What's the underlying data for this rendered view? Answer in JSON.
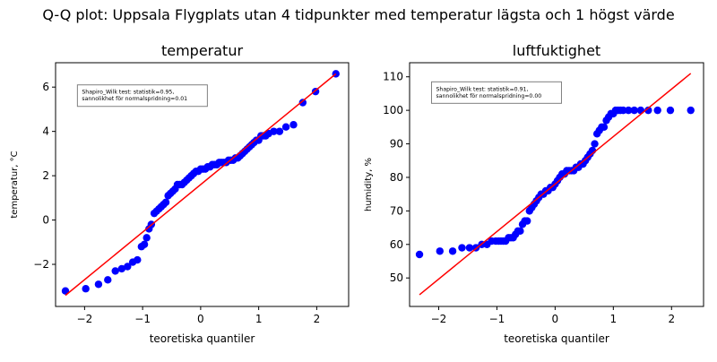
{
  "suptitle": "Q-Q plot: Uppsala Flygplats utan 4 tidpunkter med temperatur lägsta och  1 högst värde",
  "colors": {
    "points": "#0000ff",
    "fit_line": "#ff0000",
    "stats_text": "#ff0000",
    "stats_box_border": "#808080"
  },
  "chart_data": [
    {
      "type": "scatter",
      "title": "temperatur",
      "xlabel": "teoretiska quantiler",
      "ylabel": "temperatur, °C",
      "xlim": [
        -2.5,
        2.55
      ],
      "ylim": [
        -3.9,
        7.1
      ],
      "xticks": [
        -2,
        -1,
        0,
        1,
        2
      ],
      "yticks": [
        -2,
        0,
        2,
        4,
        6
      ],
      "stats_text": [
        "Shapiro_Wilk test: statistik=0.95,",
        "sannolikhet för normalspridning=0.01"
      ],
      "stats_box": {
        "x": -2.0,
        "y": 6.1
      },
      "fit_line": [
        [
          -2.33,
          -3.4
        ],
        [
          2.33,
          6.6
        ]
      ],
      "series": [
        {
          "x": [
            -2.33,
            -1.98,
            -1.76,
            -1.6,
            -1.47,
            -1.36,
            -1.26,
            -1.17,
            -1.09,
            -1.02,
            -0.97,
            -0.93,
            -0.89,
            -0.85,
            -0.8,
            -0.76,
            -0.72,
            -0.68,
            -0.64,
            -0.6,
            -0.56,
            -0.52,
            -0.48,
            -0.44,
            -0.4,
            -0.36,
            -0.32,
            -0.28,
            -0.24,
            -0.2,
            -0.16,
            -0.12,
            -0.08,
            -0.04,
            0,
            0.04,
            0.08,
            0.12,
            0.16,
            0.2,
            0.24,
            0.28,
            0.32,
            0.36,
            0.4,
            0.44,
            0.48,
            0.52,
            0.56,
            0.6,
            0.64,
            0.68,
            0.72,
            0.76,
            0.8,
            0.84,
            0.88,
            0.92,
            0.96,
            1.0,
            1.04,
            1.08,
            1.12,
            1.17,
            1.26,
            1.36,
            1.47,
            1.6,
            1.76,
            1.98,
            2.33
          ],
          "y": [
            -3.2,
            -3.1,
            -2.9,
            -2.7,
            -2.3,
            -2.2,
            -2.1,
            -1.9,
            -1.8,
            -1.2,
            -1.1,
            -0.8,
            -0.4,
            -0.2,
            0.3,
            0.4,
            0.5,
            0.6,
            0.7,
            0.8,
            1.1,
            1.2,
            1.3,
            1.4,
            1.6,
            1.6,
            1.6,
            1.7,
            1.8,
            1.9,
            2.0,
            2.1,
            2.2,
            2.2,
            2.3,
            2.3,
            2.3,
            2.4,
            2.4,
            2.5,
            2.5,
            2.5,
            2.6,
            2.6,
            2.6,
            2.6,
            2.7,
            2.7,
            2.7,
            2.8,
            2.8,
            2.9,
            3.0,
            3.1,
            3.2,
            3.3,
            3.4,
            3.5,
            3.6,
            3.6,
            3.8,
            3.8,
            3.8,
            3.9,
            4.0,
            4.0,
            4.2,
            4.3,
            5.3,
            5.8,
            6.6
          ]
        }
      ]
    },
    {
      "type": "scatter",
      "title": "luftfuktighet",
      "xlabel": "teoretiska quantiler",
      "ylabel": "humidity, %",
      "xlim": [
        -2.5,
        2.55
      ],
      "ylim": [
        41.5,
        114.2
      ],
      "xticks": [
        -2,
        -1,
        0,
        1,
        2
      ],
      "yticks": [
        50,
        60,
        70,
        80,
        90,
        100,
        110
      ],
      "stats_text": [
        "Shapiro_Wilk test: statistik=0.91,",
        "sannolikhet för normalspridning=0.00"
      ],
      "stats_box": {
        "x": -2.0,
        "y": 108.5
      },
      "fit_line": [
        [
          -2.33,
          45
        ],
        [
          2.33,
          111
        ]
      ],
      "series": [
        {
          "x": [
            -2.33,
            -1.98,
            -1.76,
            -1.6,
            -1.47,
            -1.36,
            -1.26,
            -1.17,
            -1.09,
            -1.02,
            -0.97,
            -0.93,
            -0.89,
            -0.85,
            -0.8,
            -0.76,
            -0.72,
            -0.68,
            -0.64,
            -0.6,
            -0.56,
            -0.52,
            -0.48,
            -0.44,
            -0.4,
            -0.36,
            -0.32,
            -0.28,
            -0.24,
            -0.2,
            -0.16,
            -0.12,
            -0.08,
            -0.04,
            0,
            0.04,
            0.08,
            0.12,
            0.16,
            0.2,
            0.24,
            0.28,
            0.32,
            0.36,
            0.4,
            0.44,
            0.48,
            0.52,
            0.56,
            0.6,
            0.64,
            0.68,
            0.72,
            0.76,
            0.8,
            0.84,
            0.88,
            0.92,
            0.96,
            1.0,
            1.04,
            1.08,
            1.12,
            1.17,
            1.26,
            1.36,
            1.47,
            1.6,
            1.76,
            1.98,
            2.33
          ],
          "y": [
            57,
            58,
            58,
            59,
            59,
            59,
            60,
            60,
            61,
            61,
            61,
            61,
            61,
            61,
            62,
            62,
            62,
            63,
            64,
            64,
            66,
            67,
            67,
            70,
            71,
            72,
            73,
            74,
            75,
            75,
            76,
            76,
            77,
            77,
            78,
            79,
            80,
            81,
            81,
            82,
            82,
            82,
            82,
            83,
            83,
            84,
            84,
            85,
            86,
            87,
            88,
            90,
            93,
            94,
            95,
            95,
            97,
            98,
            99,
            99,
            100,
            100,
            100,
            100,
            100,
            100,
            100,
            100,
            100,
            100,
            100
          ]
        }
      ]
    }
  ]
}
